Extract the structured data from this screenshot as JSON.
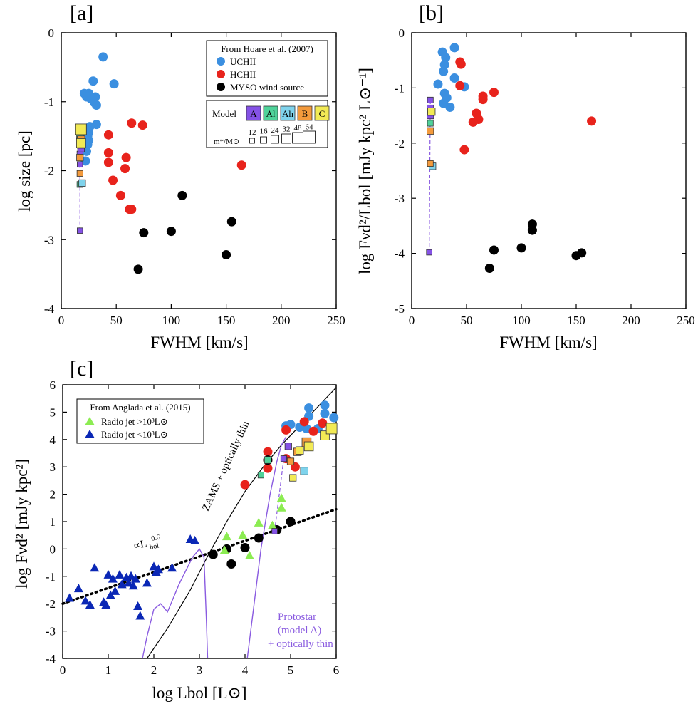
{
  "colors": {
    "UCHII": "#3b8fe0",
    "HCHII": "#e8231c",
    "MYSO": "#000000",
    "A": "#8552e6",
    "Al": "#4fd29a",
    "Ah": "#7fd3ec",
    "B": "#f39a3c",
    "C": "#f2ea55",
    "jet_high": "#8cec52",
    "jet_low": "#0a27b5",
    "protostar": "#8a5be0"
  },
  "panels": {
    "a": {
      "label": "[a]"
    },
    "b": {
      "label": "[b]"
    },
    "c": {
      "label": "[c]"
    }
  },
  "legend_ab": {
    "title": "From Hoare et al. (2007)",
    "uchii": "UCHII",
    "hchii": "HCHII",
    "myso": "MYSO wind source",
    "model_title": "Model",
    "models": [
      "A",
      "Al",
      "Ah",
      "B",
      "C"
    ],
    "mass_label": "m*/M⊙",
    "masses": [
      "12",
      "16",
      "24",
      "32",
      "48",
      "64"
    ]
  },
  "legend_c": {
    "title": "From Anglada et al. (2015)",
    "high": "Radio jet >10³L⊙",
    "low": "Radio jet <10³L⊙"
  },
  "annotations_c": {
    "zams": "ZAMS + optically thin",
    "power": "∝L",
    "power_sup": "0.6",
    "power_sub": "bol",
    "protostar": [
      "Protostar",
      "(model A)",
      "+ optically thin"
    ]
  },
  "chart_data": [
    {
      "panel": "a",
      "type": "scatter",
      "title": "[a]",
      "xlabel": "FWHM [km/s]",
      "ylabel": "log size [pc]",
      "xlim": [
        0,
        250
      ],
      "ylim": [
        -4,
        0
      ],
      "xticks": [
        0,
        50,
        100,
        150,
        200,
        250
      ],
      "yticks": [
        -4,
        -3,
        -2,
        -1,
        0
      ],
      "series": [
        {
          "name": "UCHII",
          "x": [
            38,
            29,
            25,
            48,
            27,
            31,
            30,
            32,
            21,
            32,
            23,
            26,
            25,
            25,
            24,
            23,
            22,
            24,
            23
          ],
          "y": [
            -0.35,
            -0.7,
            -0.88,
            -0.74,
            -0.96,
            -0.93,
            -1.01,
            -1.05,
            -0.88,
            -1.33,
            -0.93,
            -1.36,
            -1.45,
            -1.56,
            -1.62,
            -1.72,
            -1.86,
            -1.5,
            -1.56
          ]
        },
        {
          "name": "HCHII",
          "x": [
            64,
            74,
            43,
            43,
            43,
            59,
            58,
            47,
            54,
            62,
            64,
            164
          ],
          "y": [
            -1.31,
            -1.34,
            -1.48,
            -1.74,
            -1.88,
            -1.81,
            -1.97,
            -2.14,
            -2.36,
            -2.56,
            -2.56,
            -1.92
          ]
        },
        {
          "name": "MYSO wind source",
          "x": [
            110,
            75,
            100,
            155,
            150,
            70
          ],
          "y": [
            -2.36,
            -2.9,
            -2.88,
            -2.74,
            -3.22,
            -3.43
          ]
        }
      ],
      "model_track": [
        {
          "model": "A",
          "x": 17,
          "y": -2.87,
          "mass": 12
        },
        {
          "model": "A",
          "x": 17,
          "y": -1.91,
          "mass": 12
        },
        {
          "model": "A",
          "x": 17,
          "y": -1.76,
          "mass": 16
        },
        {
          "model": "A",
          "x": 18,
          "y": -1.68,
          "mass": 24
        },
        {
          "model": "A",
          "x": 18,
          "y": -1.62,
          "mass": 32
        },
        {
          "model": "Al",
          "x": 17,
          "y": -1.52,
          "mass": 24
        },
        {
          "model": "Al",
          "x": 17,
          "y": -2.2,
          "mass": 16
        },
        {
          "model": "Ah",
          "x": 19,
          "y": -2.18,
          "mass": 24
        },
        {
          "model": "B",
          "x": 17,
          "y": -2.04,
          "mass": 16
        },
        {
          "model": "B",
          "x": 17,
          "y": -1.81,
          "mass": 24
        },
        {
          "model": "B",
          "x": 18,
          "y": -1.55,
          "mass": 32
        },
        {
          "model": "C",
          "x": 18,
          "y": -1.6,
          "mass": 48
        },
        {
          "model": "C",
          "x": 18,
          "y": -1.4,
          "mass": 64
        }
      ]
    },
    {
      "panel": "b",
      "type": "scatter",
      "title": "[b]",
      "xlabel": "FWHM [km/s]",
      "ylabel": "log Fνd²/Lbol [mJy kpc² L⊙⁻¹]",
      "xlim": [
        0,
        250
      ],
      "ylim": [
        -5,
        0
      ],
      "xticks": [
        0,
        50,
        100,
        150,
        200,
        250
      ],
      "yticks": [
        -5,
        -4,
        -3,
        -2,
        -1,
        0
      ],
      "series": [
        {
          "name": "UCHII",
          "x": [
            28,
            39,
            31,
            30,
            29,
            24,
            39,
            48,
            30,
            32,
            35,
            29
          ],
          "y": [
            -0.35,
            -0.27,
            -0.45,
            -0.58,
            -0.7,
            -0.93,
            -0.82,
            -0.98,
            -1.1,
            -1.18,
            -1.35,
            -1.28
          ]
        },
        {
          "name": "HCHII",
          "x": [
            44,
            45,
            44,
            65,
            75,
            65,
            59,
            61,
            56,
            48,
            164
          ],
          "y": [
            -0.53,
            -0.57,
            -0.96,
            -1.15,
            -1.08,
            -1.21,
            -1.46,
            -1.57,
            -1.62,
            -2.12,
            -1.6
          ]
        },
        {
          "name": "MYSO wind source",
          "x": [
            110,
            110,
            75,
            100,
            150,
            155,
            71
          ],
          "y": [
            -3.47,
            -3.58,
            -3.94,
            -3.9,
            -4.04,
            -3.99,
            -4.27
          ]
        }
      ],
      "model_track": [
        {
          "model": "A",
          "x": 16,
          "y": -3.98,
          "mass": 12
        },
        {
          "model": "A",
          "x": 17,
          "y": -1.22,
          "mass": 16
        },
        {
          "model": "A",
          "x": 17,
          "y": -1.37,
          "mass": 24
        },
        {
          "model": "A",
          "x": 17,
          "y": -1.5,
          "mass": 24
        },
        {
          "model": "Al",
          "x": 17,
          "y": -1.64,
          "mass": 16
        },
        {
          "model": "Ah",
          "x": 19,
          "y": -2.42,
          "mass": 24
        },
        {
          "model": "B",
          "x": 17,
          "y": -2.37,
          "mass": 16
        },
        {
          "model": "B",
          "x": 17,
          "y": -1.78,
          "mass": 24
        },
        {
          "model": "C",
          "x": 18,
          "y": -1.43,
          "mass": 32
        }
      ]
    },
    {
      "panel": "c",
      "type": "scatter",
      "title": "[c]",
      "xlabel": "log Lbol [L⊙]",
      "ylabel": "log Fνd² [mJy kpc²]",
      "xlim": [
        0,
        6
      ],
      "ylim": [
        -4,
        6
      ],
      "xticks": [
        0,
        1,
        2,
        3,
        4,
        5,
        6
      ],
      "yticks": [
        -4,
        -3,
        -2,
        -1,
        0,
        1,
        2,
        3,
        4,
        5,
        6
      ],
      "series": [
        {
          "name": "UCHII",
          "x": [
            5.4,
            5.4,
            5.75,
            5.75,
            5.95,
            5.0,
            5.2,
            5.35,
            5.6,
            4.9
          ],
          "y": [
            5.15,
            4.85,
            5.25,
            4.95,
            4.8,
            4.55,
            4.45,
            4.4,
            4.4,
            4.5
          ]
        },
        {
          "name": "HCHII",
          "x": [
            4.0,
            4.5,
            4.5,
            4.5,
            4.9,
            5.3,
            5.7,
            5.1,
            5.5,
            4.9
          ],
          "y": [
            2.35,
            3.55,
            3.25,
            2.95,
            4.35,
            4.65,
            4.6,
            3.0,
            4.3,
            3.3
          ]
        },
        {
          "name": "MYSO wind source",
          "x": [
            3.3,
            3.6,
            3.7,
            4.0,
            4.3,
            4.7,
            5.0,
            4.5
          ],
          "y": [
            -0.2,
            0.0,
            -0.55,
            0.05,
            0.4,
            0.7,
            1.0,
            3.25
          ]
        },
        {
          "name": "Radio jet >10³L⊙",
          "x": [
            3.6,
            3.95,
            4.1,
            4.3,
            4.6,
            4.8,
            4.8,
            3.55
          ],
          "y": [
            0.45,
            0.5,
            -0.25,
            0.95,
            0.85,
            1.85,
            1.5,
            -0.05
          ]
        },
        {
          "name": "Radio jet <10³L⊙",
          "x": [
            0.15,
            0.35,
            0.5,
            0.6,
            0.7,
            0.9,
            0.95,
            1.0,
            1.05,
            1.1,
            1.15,
            1.25,
            1.3,
            1.4,
            1.45,
            1.5,
            1.55,
            1.6,
            1.65,
            1.7,
            1.85,
            2.0,
            2.05,
            2.1,
            2.4,
            2.8,
            2.9
          ],
          "y": [
            -1.8,
            -1.45,
            -1.9,
            -2.05,
            -0.7,
            -1.95,
            -2.05,
            -0.95,
            -1.7,
            -1.1,
            -1.55,
            -0.95,
            -1.3,
            -1.05,
            -1.25,
            -1.0,
            -1.35,
            -1.1,
            -2.1,
            -2.45,
            -1.25,
            -0.65,
            -0.85,
            -0.75,
            -0.7,
            0.35,
            0.3
          ]
        }
      ],
      "model_track": [
        {
          "model": "A",
          "x": 4.65,
          "y": 0.65,
          "mass": 12
        },
        {
          "model": "A",
          "x": 4.85,
          "y": 3.3,
          "mass": 16
        },
        {
          "model": "A",
          "x": 4.95,
          "y": 3.75,
          "mass": 24
        },
        {
          "model": "Al",
          "x": 4.35,
          "y": 2.7,
          "mass": 16
        },
        {
          "model": "Al",
          "x": 4.5,
          "y": 3.25,
          "mass": 24
        },
        {
          "model": "Ah",
          "x": 5.3,
          "y": 2.85,
          "mass": 32
        },
        {
          "model": "B",
          "x": 5.0,
          "y": 3.2,
          "mass": 24
        },
        {
          "model": "B",
          "x": 5.15,
          "y": 3.55,
          "mass": 32
        },
        {
          "model": "B",
          "x": 5.35,
          "y": 3.9,
          "mass": 48
        },
        {
          "model": "C",
          "x": 5.05,
          "y": 2.6,
          "mass": 24
        },
        {
          "model": "C",
          "x": 5.2,
          "y": 3.6,
          "mass": 32
        },
        {
          "model": "C",
          "x": 5.4,
          "y": 3.75,
          "mass": 48
        },
        {
          "model": "C",
          "x": 5.75,
          "y": 4.15,
          "mass": 48
        },
        {
          "model": "C",
          "x": 5.9,
          "y": 4.4,
          "mass": 64
        }
      ],
      "lines": {
        "power_law_0p6": {
          "x": [
            0,
            6
          ],
          "y": [
            -2.0,
            1.45
          ]
        },
        "zams_optically_thin": {
          "x": [
            1.85,
            2.3,
            2.8,
            3.2,
            3.6,
            4.0,
            4.4,
            4.8,
            5.2,
            5.6,
            6.0
          ],
          "y": [
            -4.0,
            -2.9,
            -1.5,
            -0.2,
            1.0,
            2.1,
            3.0,
            3.8,
            4.5,
            5.2,
            5.9
          ]
        },
        "protostar_model_A": {
          "x": [
            1.75,
            1.85,
            2.0,
            2.15,
            2.3,
            2.55,
            2.85,
            3.0,
            3.1,
            3.15,
            3.18
          ],
          "y": [
            -4.0,
            -3.2,
            -2.2,
            -2.0,
            -2.3,
            -1.3,
            -0.3,
            0.0,
            -0.3,
            -2.5,
            -4.0
          ]
        },
        "protostar_model_A_2": {
          "x": [
            4.05,
            4.2,
            4.35,
            4.55,
            4.7,
            4.8,
            4.9
          ],
          "y": [
            -4.0,
            -2.0,
            0.0,
            2.0,
            3.2,
            3.8,
            4.1
          ]
        }
      }
    }
  ]
}
